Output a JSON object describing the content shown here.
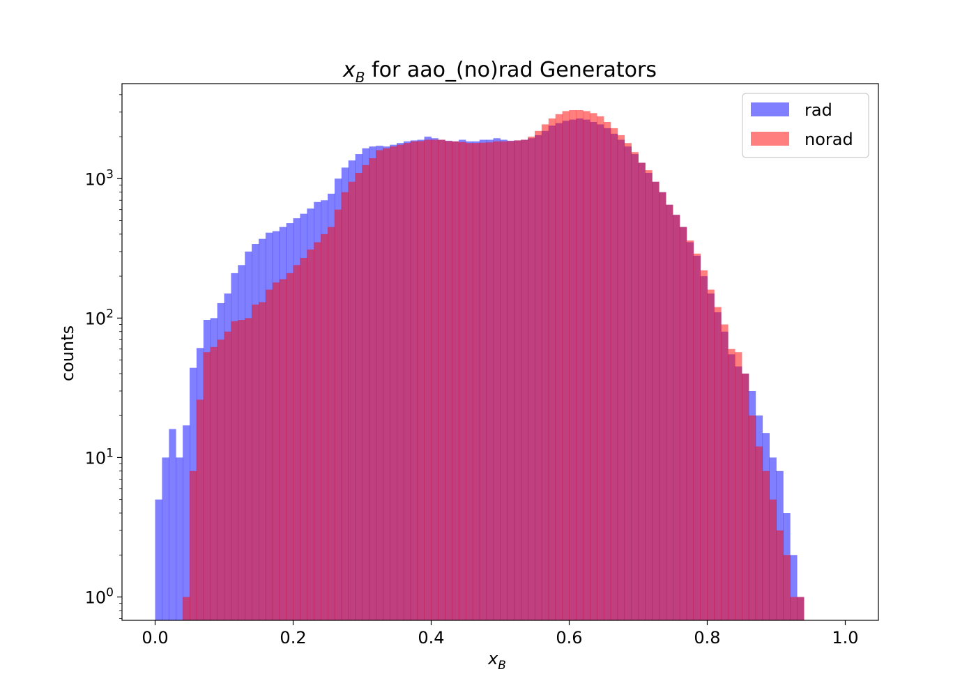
{
  "chart_data": {
    "type": "bar",
    "title_main": "x",
    "title_sub": "B",
    "title_rest": " for aao_(no)rad Generators",
    "xlabel_main": "x",
    "xlabel_sub": "B",
    "ylabel": "counts",
    "xlim": [
      -0.048,
      1.048
    ],
    "ylim": [
      0.68,
      4800
    ],
    "yscale": "log",
    "grid": false,
    "legend_position": "top-right",
    "x_ticks": [
      0.0,
      0.2,
      0.4,
      0.6,
      0.8,
      1.0
    ],
    "x_tick_labels": [
      "0.0",
      "0.2",
      "0.4",
      "0.6",
      "0.8",
      "1.0"
    ],
    "y_ticks": [
      1,
      10,
      100,
      1000
    ],
    "y_tick_base": "10",
    "y_tick_exponents": [
      "0",
      "1",
      "2",
      "3"
    ],
    "bin_start": 0.0,
    "bin_width": 0.01,
    "series": [
      {
        "name": "rad",
        "color": "#0000ff",
        "alpha": 0.5,
        "values": [
          5,
          10,
          16,
          10,
          17,
          44,
          61,
          97,
          100,
          128,
          150,
          210,
          240,
          300,
          340,
          370,
          410,
          420,
          450,
          480,
          520,
          560,
          610,
          680,
          700,
          780,
          1000,
          1200,
          1350,
          1500,
          1650,
          1700,
          1720,
          1700,
          1750,
          1800,
          1850,
          1880,
          1900,
          2000,
          1950,
          1900,
          1870,
          1850,
          1900,
          1850,
          1850,
          1900,
          1900,
          1950,
          1900,
          1870,
          1880,
          1900,
          1950,
          2050,
          2200,
          2400,
          2500,
          2600,
          2650,
          2700,
          2650,
          2550,
          2450,
          2300,
          2100,
          1900,
          1700,
          1500,
          1300,
          1100,
          950,
          800,
          650,
          550,
          450,
          350,
          280,
          200,
          150,
          110,
          80,
          55,
          45,
          40,
          30,
          20,
          15,
          10,
          8,
          4,
          2,
          1
        ]
      },
      {
        "name": "norad",
        "color": "#ff0000",
        "alpha": 0.5,
        "values": [
          0,
          0,
          0,
          0,
          1,
          8,
          26,
          57,
          62,
          70,
          80,
          95,
          97,
          100,
          125,
          130,
          160,
          180,
          190,
          210,
          240,
          270,
          310,
          350,
          400,
          450,
          600,
          800,
          950,
          1100,
          1250,
          1400,
          1600,
          1650,
          1700,
          1750,
          1800,
          1850,
          1860,
          1900,
          1900,
          1900,
          1860,
          1850,
          1830,
          1800,
          1800,
          1810,
          1820,
          1850,
          1850,
          1860,
          1880,
          1900,
          2000,
          2200,
          2450,
          2700,
          2900,
          3050,
          3100,
          3100,
          3050,
          2950,
          2800,
          2550,
          2300,
          2050,
          1800,
          1550,
          1300,
          1150,
          950,
          800,
          650,
          550,
          450,
          360,
          290,
          220,
          160,
          120,
          90,
          60,
          57,
          40,
          20,
          12,
          8,
          5,
          3,
          2,
          1,
          1
        ]
      }
    ]
  }
}
